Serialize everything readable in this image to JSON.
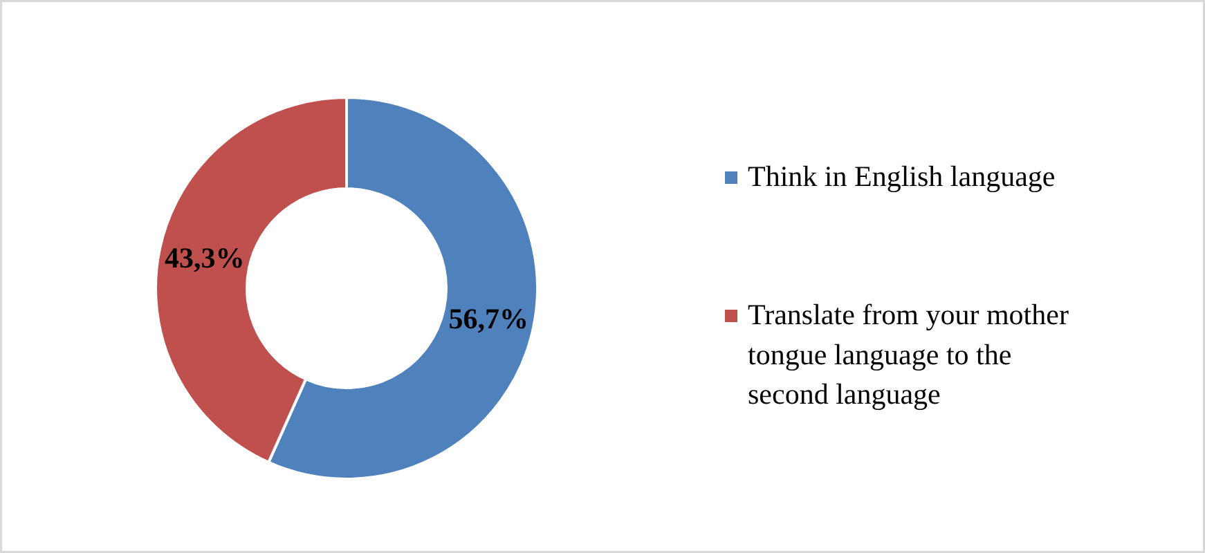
{
  "chart_data": {
    "type": "donut",
    "categories": [
      "Think in English  language",
      "Translate from your mother tongue language to the second language"
    ],
    "values": [
      56.7,
      43.3
    ],
    "colors": [
      "#4f81bd",
      "#c0504d"
    ],
    "value_labels": [
      "56,7%",
      "43,3%"
    ],
    "legend": "right"
  }
}
